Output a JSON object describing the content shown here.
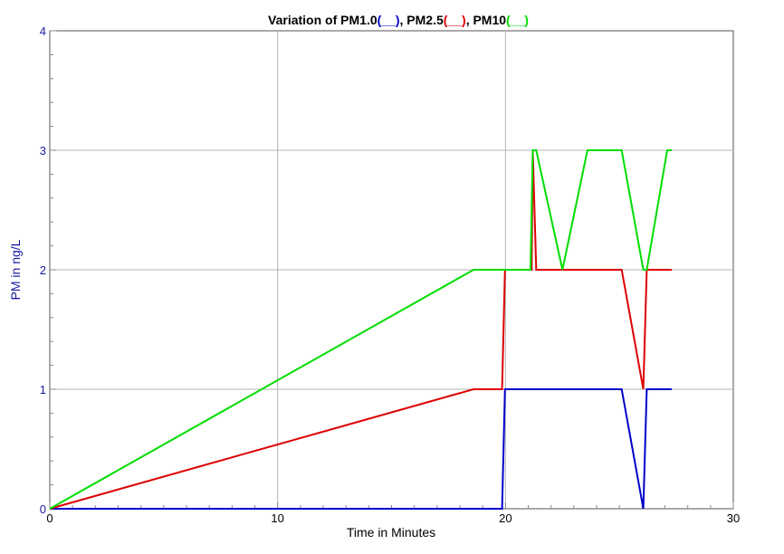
{
  "chart_data": {
    "type": "line",
    "title_parts": [
      {
        "text": "Variation of PM1.0",
        "color": "#000000"
      },
      {
        "text": "(__)",
        "color": "#0000cc"
      },
      {
        "text": ", PM2.5",
        "color": "#000000"
      },
      {
        "text": "(__)",
        "color": "#dd0000"
      },
      {
        "text": ", PM10",
        "color": "#000000"
      },
      {
        "text": "(__)",
        "color": "#00dd00"
      }
    ],
    "xlabel": "Time in Minutes",
    "ylabel": "PM in ng/L",
    "xlim": [
      0,
      30
    ],
    "ylim": [
      0,
      4
    ],
    "xticks": [
      0,
      10,
      20,
      30
    ],
    "yticks": [
      0,
      1,
      2,
      3,
      4
    ],
    "grid": true,
    "series": [
      {
        "name": "PM1.0",
        "color": "#0000cc",
        "x": [
          0,
          19.85,
          19.98,
          25.1,
          26.05,
          26.2,
          27.3
        ],
        "y": [
          0,
          0,
          1,
          1,
          0,
          1,
          1
        ]
      },
      {
        "name": "PM2.5",
        "color": "#dd0000",
        "x": [
          0,
          18.6,
          19.85,
          19.98,
          21.15,
          21.2,
          21.35,
          25.1,
          26.05,
          26.2,
          27.3
        ],
        "y": [
          0,
          1,
          1,
          2,
          2,
          3,
          2,
          2,
          1,
          2,
          2
        ]
      },
      {
        "name": "PM10",
        "color": "#00dd00",
        "x": [
          0,
          18.6,
          21.1,
          21.2,
          21.35,
          22.5,
          23.6,
          25.1,
          26.05,
          26.2,
          27.1,
          27.3
        ],
        "y": [
          0,
          2,
          2,
          3,
          3,
          2,
          3,
          3,
          2,
          2,
          3,
          3
        ]
      }
    ]
  }
}
